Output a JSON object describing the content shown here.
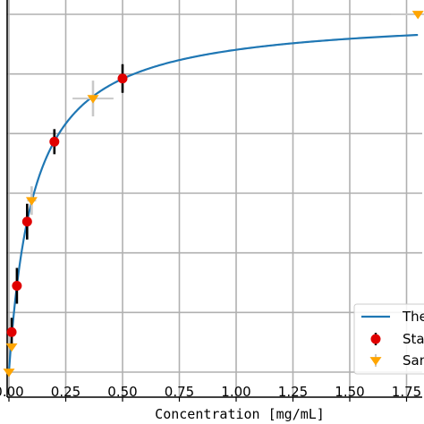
{
  "chart_data": {
    "type": "scatter",
    "xlabel": "Concentration [mg/mL]",
    "ylabel": "",
    "title": "",
    "xlim": [
      0.0,
      1.8
    ],
    "ylim": [
      0.0,
      1.0
    ],
    "x_tick_labels": [
      {
        "value": 0.0,
        "label": "0.00"
      },
      {
        "value": 0.25,
        "label": "0.25"
      },
      {
        "value": 0.5,
        "label": "0.50"
      },
      {
        "value": 0.75,
        "label": "0.75"
      },
      {
        "value": 1.0,
        "label": "1.00"
      },
      {
        "value": 1.25,
        "label": "1.25"
      },
      {
        "value": 1.5,
        "label": "1.50"
      },
      {
        "value": 1.75,
        "label": "1.75"
      }
    ],
    "y_grid_values": [
      0.0,
      0.1667,
      0.3333,
      0.5,
      0.6667,
      0.8333,
      1.0
    ],
    "grid": true,
    "legend_position": "bottom-right",
    "series": [
      {
        "name": "The",
        "kind": "line",
        "color": "#1f77b4",
        "model": {
          "ymax": 1.0,
          "k": 0.11
        }
      },
      {
        "name": "Sta",
        "kind": "errorbar",
        "marker": "circle",
        "color": "#e00000",
        "ecolor": "#000000",
        "points": [
          {
            "x": 0.012,
            "y": 0.1118,
            "yerr": 0.04
          },
          {
            "x": 0.035,
            "y": 0.2412,
            "yerr": 0.05
          },
          {
            "x": 0.08,
            "y": 0.4206,
            "yerr": 0.05
          },
          {
            "x": 0.2,
            "y": 0.6441,
            "yerr": 0.035
          },
          {
            "x": 0.5,
            "y": 0.8206,
            "yerr": 0.04
          }
        ]
      },
      {
        "name": "Sam",
        "kind": "errorbar",
        "marker": "triangle-down",
        "color": "#ffa500",
        "ecolor": "#c8c8c8",
        "points": [
          {
            "x": 0.0,
            "y": 0.0,
            "xerr": 0.0,
            "yerr": 0.0
          },
          {
            "x": 0.012,
            "y": 0.0706,
            "xerr": 0.0,
            "yerr": 0.0
          },
          {
            "x": 0.1,
            "y": 0.4794,
            "xerr": 0.02,
            "yerr": 0.04
          },
          {
            "x": 0.37,
            "y": 0.7647,
            "xerr": 0.09,
            "yerr": 0.05
          },
          {
            "x": 1.8,
            "y": 1.0,
            "xerr": 0.12,
            "yerr": 0.0
          }
        ]
      }
    ]
  }
}
